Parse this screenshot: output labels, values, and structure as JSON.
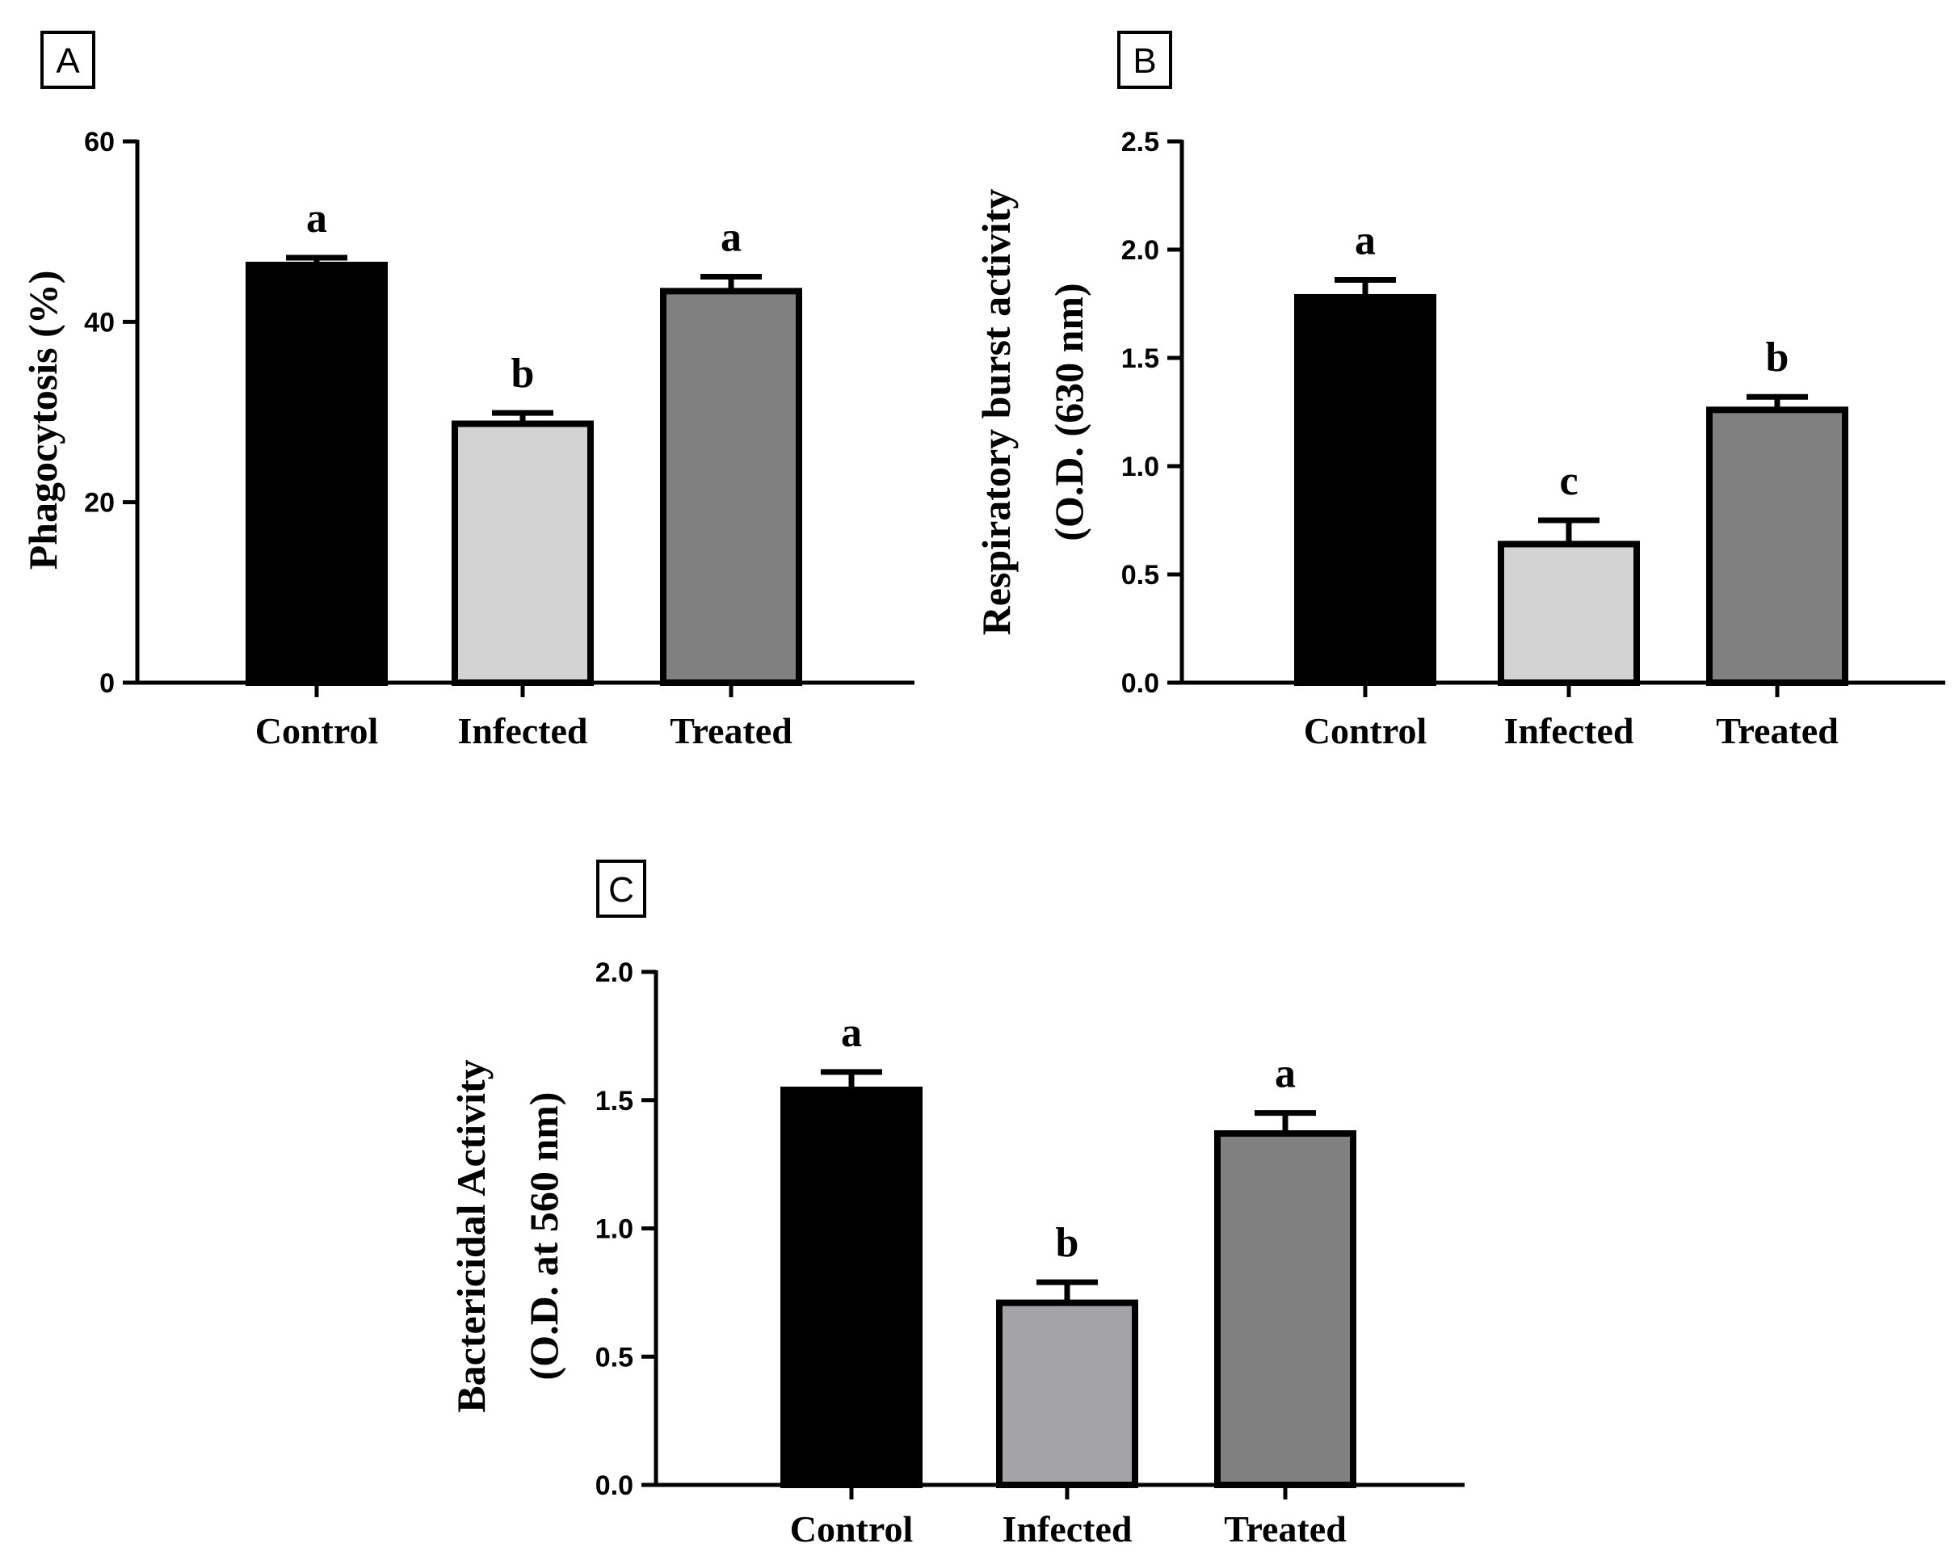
{
  "chart_data": [
    {
      "type": "bar",
      "panel_label": "A",
      "title": "",
      "ylabel": "Phagocytosis (%)",
      "ylabel_lines": [
        "Phagocytosis (%)"
      ],
      "xlabel": "",
      "categories": [
        "Control",
        "Infected",
        "Treated"
      ],
      "values": [
        46.3,
        28.7,
        43.4
      ],
      "errors": [
        0.8,
        1.2,
        1.6
      ],
      "significance": [
        "a",
        "b",
        "a"
      ],
      "colors": [
        "#000000",
        "#d3d3d3",
        "#808080"
      ],
      "ylim": [
        0,
        60
      ],
      "yticks": [
        0,
        20,
        40,
        60
      ],
      "ytick_labels": [
        "0",
        "20",
        "40",
        "60"
      ]
    },
    {
      "type": "bar",
      "panel_label": "B",
      "title": "",
      "ylabel": "Respiratory  burst activity (O.D. (630 nm)",
      "ylabel_lines": [
        "Respiratory  burst activity",
        "(O.D. (630 nm)"
      ],
      "xlabel": "",
      "categories": [
        "Control",
        "Infected",
        "Treated"
      ],
      "values": [
        1.78,
        0.64,
        1.26
      ],
      "errors": [
        0.08,
        0.11,
        0.06
      ],
      "significance": [
        "a",
        "c",
        "b"
      ],
      "colors": [
        "#000000",
        "#d3d3d3",
        "#808080"
      ],
      "ylim": [
        0,
        2.5
      ],
      "yticks": [
        0,
        0.5,
        1.0,
        1.5,
        2.0,
        2.5
      ],
      "ytick_labels": [
        "0.0",
        "0.5",
        "1.0",
        "1.5",
        "2.0",
        "2.5"
      ]
    },
    {
      "type": "bar",
      "panel_label": "C",
      "title": "",
      "ylabel": "Bactericidal  Activity (O.D. at 560 nm)",
      "ylabel_lines": [
        "Bactericidal  Activity",
        "(O.D. at 560 nm)"
      ],
      "xlabel": "",
      "categories": [
        "Control",
        "Infected",
        "Treated"
      ],
      "values": [
        1.54,
        0.71,
        1.37
      ],
      "errors": [
        0.07,
        0.08,
        0.08
      ],
      "significance": [
        "a",
        "b",
        "a"
      ],
      "colors": [
        "#000000",
        "#a3a3a8",
        "#808080"
      ],
      "ylim": [
        0,
        2.0
      ],
      "yticks": [
        0,
        0.5,
        1.0,
        1.5,
        2.0
      ],
      "ytick_labels": [
        "0.0",
        "0.5",
        "1.0",
        "1.5",
        "2.0"
      ]
    }
  ]
}
